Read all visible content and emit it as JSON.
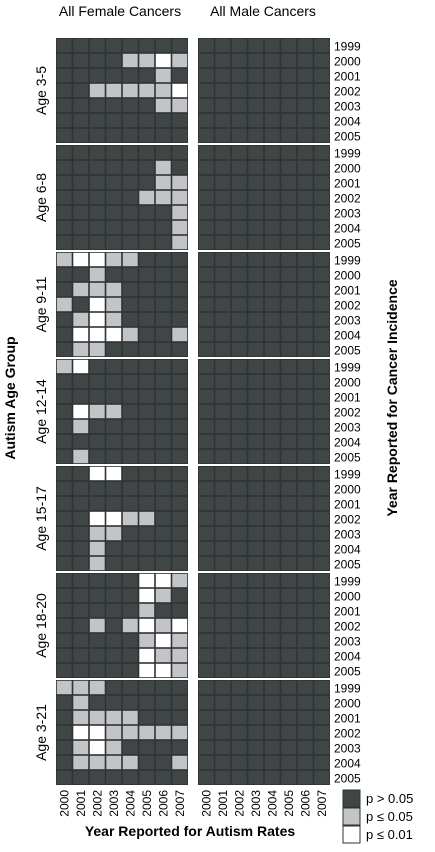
{
  "chart_data": {
    "type": "heatmap",
    "column_panels": [
      "All Female Cancers",
      "All Male Cancers"
    ],
    "xlabel": "Year Reported for Autism Rates",
    "ylabel_left": "Autism Age Group",
    "ylabel_right": "Year Reported for Cancer Incidence",
    "x_categories": [
      "2000",
      "2001",
      "2002",
      "2003",
      "2004",
      "2005",
      "2006",
      "2007"
    ],
    "y_categories": [
      "1999",
      "2000",
      "2001",
      "2002",
      "2003",
      "2004",
      "2005"
    ],
    "level_codes": {
      "0": "p > 0.05",
      "1": "p ≤ 0.05",
      "2": "p ≤ 0.01"
    },
    "colors": {
      "0": "#404545",
      "1": "#c2c4c8",
      "2": "#ffffff"
    },
    "legend": [
      {
        "label": "p > 0.05",
        "color": "#404545"
      },
      {
        "label": "p ≤ 0.05",
        "color": "#c2c4c8"
      },
      {
        "label": "p ≤ 0.01",
        "color": "#ffffff"
      }
    ],
    "age_groups": [
      {
        "label": "Age 3-5",
        "female": [
          [
            0,
            0,
            0,
            0,
            0,
            0,
            0,
            0
          ],
          [
            0,
            0,
            0,
            0,
            1,
            1,
            2,
            1
          ],
          [
            0,
            0,
            0,
            0,
            0,
            0,
            1,
            0
          ],
          [
            0,
            0,
            1,
            1,
            1,
            1,
            1,
            2
          ],
          [
            0,
            0,
            0,
            0,
            0,
            0,
            1,
            1
          ],
          [
            0,
            0,
            0,
            0,
            0,
            0,
            0,
            0
          ],
          [
            0,
            0,
            0,
            0,
            0,
            0,
            0,
            0
          ]
        ],
        "male": [
          [
            0,
            0,
            0,
            0,
            0,
            0,
            0,
            0
          ],
          [
            0,
            0,
            0,
            0,
            0,
            0,
            0,
            0
          ],
          [
            0,
            0,
            0,
            0,
            0,
            0,
            0,
            0
          ],
          [
            0,
            0,
            0,
            0,
            0,
            0,
            0,
            0
          ],
          [
            0,
            0,
            0,
            0,
            0,
            0,
            0,
            0
          ],
          [
            0,
            0,
            0,
            0,
            0,
            0,
            0,
            0
          ],
          [
            0,
            0,
            0,
            0,
            0,
            0,
            0,
            0
          ]
        ]
      },
      {
        "label": "Age 6-8",
        "female": [
          [
            0,
            0,
            0,
            0,
            0,
            0,
            0,
            0
          ],
          [
            0,
            0,
            0,
            0,
            0,
            0,
            1,
            0
          ],
          [
            0,
            0,
            0,
            0,
            0,
            0,
            1,
            1
          ],
          [
            0,
            0,
            0,
            0,
            0,
            1,
            1,
            1
          ],
          [
            0,
            0,
            0,
            0,
            0,
            0,
            0,
            1
          ],
          [
            0,
            0,
            0,
            0,
            0,
            0,
            0,
            1
          ],
          [
            0,
            0,
            0,
            0,
            0,
            0,
            0,
            1
          ]
        ],
        "male": [
          [
            0,
            0,
            0,
            0,
            0,
            0,
            0,
            0
          ],
          [
            0,
            0,
            0,
            0,
            0,
            0,
            0,
            0
          ],
          [
            0,
            0,
            0,
            0,
            0,
            0,
            0,
            0
          ],
          [
            0,
            0,
            0,
            0,
            0,
            0,
            0,
            0
          ],
          [
            0,
            0,
            0,
            0,
            0,
            0,
            0,
            0
          ],
          [
            0,
            0,
            0,
            0,
            0,
            0,
            0,
            0
          ],
          [
            0,
            0,
            0,
            0,
            0,
            0,
            0,
            0
          ]
        ]
      },
      {
        "label": "Age 9-11",
        "female": [
          [
            1,
            2,
            2,
            1,
            1,
            0,
            0,
            0
          ],
          [
            0,
            0,
            1,
            0,
            0,
            0,
            0,
            0
          ],
          [
            0,
            1,
            1,
            1,
            0,
            0,
            0,
            0
          ],
          [
            1,
            0,
            2,
            1,
            0,
            0,
            0,
            0
          ],
          [
            0,
            1,
            2,
            1,
            0,
            0,
            0,
            0
          ],
          [
            0,
            2,
            2,
            2,
            1,
            0,
            0,
            1
          ],
          [
            0,
            1,
            1,
            0,
            0,
            0,
            0,
            0
          ]
        ],
        "male": [
          [
            0,
            0,
            0,
            0,
            0,
            0,
            0,
            0
          ],
          [
            0,
            0,
            0,
            0,
            0,
            0,
            0,
            0
          ],
          [
            0,
            0,
            0,
            0,
            0,
            0,
            0,
            0
          ],
          [
            0,
            0,
            0,
            0,
            0,
            0,
            0,
            0
          ],
          [
            0,
            0,
            0,
            0,
            0,
            0,
            0,
            0
          ],
          [
            0,
            0,
            0,
            0,
            0,
            0,
            0,
            0
          ],
          [
            0,
            0,
            0,
            0,
            0,
            0,
            0,
            0
          ]
        ]
      },
      {
        "label": "Age 12-14",
        "female": [
          [
            1,
            2,
            0,
            0,
            0,
            0,
            0,
            0
          ],
          [
            0,
            0,
            0,
            0,
            0,
            0,
            0,
            0
          ],
          [
            0,
            0,
            0,
            0,
            0,
            0,
            0,
            0
          ],
          [
            0,
            2,
            1,
            1,
            0,
            0,
            0,
            0
          ],
          [
            0,
            1,
            0,
            0,
            0,
            0,
            0,
            0
          ],
          [
            0,
            0,
            0,
            0,
            0,
            0,
            0,
            0
          ],
          [
            0,
            1,
            0,
            0,
            0,
            0,
            0,
            0
          ]
        ],
        "male": [
          [
            0,
            0,
            0,
            0,
            0,
            0,
            0,
            0
          ],
          [
            0,
            0,
            0,
            0,
            0,
            0,
            0,
            0
          ],
          [
            0,
            0,
            0,
            0,
            0,
            0,
            0,
            0
          ],
          [
            0,
            0,
            0,
            0,
            0,
            0,
            0,
            0
          ],
          [
            0,
            0,
            0,
            0,
            0,
            0,
            0,
            0
          ],
          [
            0,
            0,
            0,
            0,
            0,
            0,
            0,
            0
          ],
          [
            0,
            0,
            0,
            0,
            0,
            0,
            0,
            0
          ]
        ]
      },
      {
        "label": "Age 15-17",
        "female": [
          [
            0,
            0,
            2,
            2,
            0,
            0,
            0,
            0
          ],
          [
            0,
            0,
            0,
            0,
            0,
            0,
            0,
            0
          ],
          [
            0,
            0,
            0,
            0,
            0,
            0,
            0,
            0
          ],
          [
            0,
            0,
            2,
            2,
            1,
            1,
            0,
            0
          ],
          [
            0,
            0,
            1,
            1,
            0,
            0,
            0,
            0
          ],
          [
            0,
            0,
            1,
            0,
            0,
            0,
            0,
            0
          ],
          [
            0,
            0,
            1,
            0,
            0,
            0,
            0,
            0
          ]
        ],
        "male": [
          [
            0,
            0,
            0,
            0,
            0,
            0,
            0,
            0
          ],
          [
            0,
            0,
            0,
            0,
            0,
            0,
            0,
            0
          ],
          [
            0,
            0,
            0,
            0,
            0,
            0,
            0,
            0
          ],
          [
            0,
            0,
            0,
            0,
            0,
            0,
            0,
            0
          ],
          [
            0,
            0,
            0,
            0,
            0,
            0,
            0,
            0
          ],
          [
            0,
            0,
            0,
            0,
            0,
            0,
            0,
            0
          ],
          [
            0,
            0,
            0,
            0,
            0,
            0,
            0,
            0
          ]
        ]
      },
      {
        "label": "Age 18-20",
        "female": [
          [
            0,
            0,
            0,
            0,
            0,
            2,
            2,
            1
          ],
          [
            0,
            0,
            0,
            0,
            0,
            2,
            1,
            0
          ],
          [
            0,
            0,
            0,
            0,
            0,
            1,
            0,
            0
          ],
          [
            0,
            0,
            1,
            0,
            1,
            2,
            1,
            2
          ],
          [
            0,
            0,
            0,
            0,
            0,
            1,
            2,
            1
          ],
          [
            0,
            0,
            0,
            0,
            0,
            2,
            1,
            1
          ],
          [
            0,
            0,
            0,
            0,
            0,
            2,
            2,
            1
          ]
        ],
        "male": [
          [
            0,
            0,
            0,
            0,
            0,
            0,
            0,
            0
          ],
          [
            0,
            0,
            0,
            0,
            0,
            0,
            0,
            0
          ],
          [
            0,
            0,
            0,
            0,
            0,
            0,
            0,
            0
          ],
          [
            0,
            0,
            0,
            0,
            0,
            0,
            0,
            0
          ],
          [
            0,
            0,
            0,
            0,
            0,
            0,
            0,
            0
          ],
          [
            0,
            0,
            0,
            0,
            0,
            0,
            0,
            0
          ],
          [
            0,
            0,
            0,
            0,
            0,
            0,
            0,
            0
          ]
        ]
      },
      {
        "label": "Age 3-21",
        "female": [
          [
            1,
            1,
            1,
            0,
            0,
            0,
            0,
            0
          ],
          [
            0,
            1,
            0,
            0,
            0,
            0,
            0,
            0
          ],
          [
            0,
            1,
            1,
            1,
            1,
            0,
            0,
            0
          ],
          [
            0,
            2,
            2,
            1,
            1,
            1,
            1,
            1
          ],
          [
            0,
            1,
            2,
            1,
            0,
            0,
            0,
            0
          ],
          [
            0,
            1,
            1,
            1,
            1,
            0,
            0,
            1
          ],
          [
            0,
            0,
            0,
            0,
            0,
            0,
            0,
            0
          ]
        ],
        "male": [
          [
            0,
            0,
            0,
            0,
            0,
            0,
            0,
            0
          ],
          [
            0,
            0,
            0,
            0,
            0,
            0,
            0,
            0
          ],
          [
            0,
            0,
            0,
            0,
            0,
            0,
            0,
            0
          ],
          [
            0,
            0,
            0,
            0,
            0,
            0,
            0,
            0
          ],
          [
            0,
            0,
            0,
            0,
            0,
            0,
            0,
            0
          ],
          [
            0,
            0,
            0,
            0,
            0,
            0,
            0,
            0
          ],
          [
            0,
            0,
            0,
            0,
            0,
            0,
            0,
            0
          ]
        ]
      }
    ]
  }
}
